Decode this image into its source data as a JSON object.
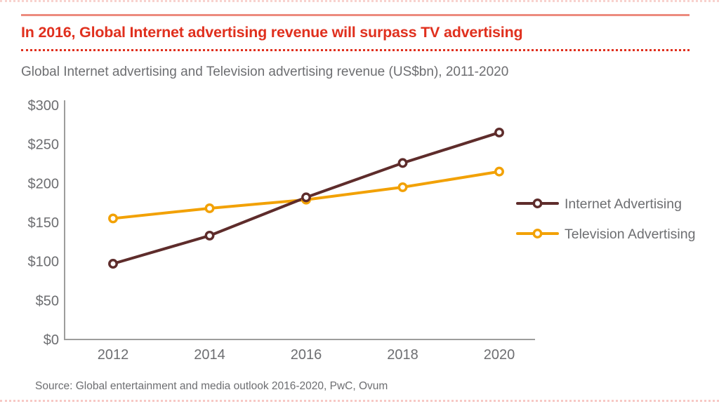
{
  "page": {
    "headline": "In 2016, Global Internet advertising revenue will surpass TV advertising",
    "subtitle": "Global Internet advertising and Television advertising revenue (US$bn), 2011-2020",
    "source": "Source: Global entertainment and media outlook 2016-2020, PwC, Ovum"
  },
  "colors": {
    "headline_red": "#E0301E",
    "rule_salmon": "#EC8B7E",
    "text_gray": "#6D6E71",
    "axis_gray": "#9D9D9C",
    "internet_line": "#5E2C2B",
    "television_line": "#F2A104",
    "marker_fill": "#FFFFFF"
  },
  "chart_data": {
    "type": "line",
    "title": "Global Internet advertising and Television advertising revenue (US$bn), 2011-2020",
    "x": [
      2012,
      2014,
      2016,
      2018,
      2020
    ],
    "x_tick_labels": [
      "2012",
      "2014",
      "2016",
      "2018",
      "2020"
    ],
    "series": [
      {
        "name": "Internet Advertising",
        "color": "#5E2C2B",
        "values": [
          97,
          133,
          182,
          226,
          265
        ]
      },
      {
        "name": "Television Advertising",
        "color": "#F2A104",
        "values": [
          155,
          168,
          179,
          195,
          215
        ]
      }
    ],
    "ylabel": "",
    "xlabel": "",
    "ylim": [
      0,
      300
    ],
    "y_tick_step": 50,
    "y_tick_labels": [
      "$300",
      "$250",
      "$200",
      "$150",
      "$100",
      "$50",
      "$0"
    ],
    "grid": false,
    "legend_position": "right",
    "marker": "open-circle"
  }
}
